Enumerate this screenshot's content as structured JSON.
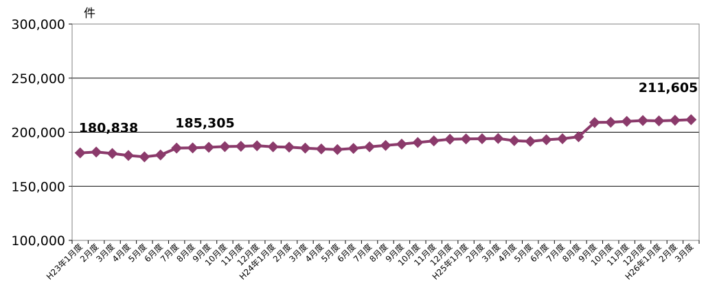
{
  "chart_data": {
    "type": "line",
    "unit_label": "件",
    "ylim": [
      100000,
      300000
    ],
    "yticks": [
      "300,000",
      "250,000",
      "200,000",
      "150,000",
      "100,000"
    ],
    "ytick_values": [
      300000,
      250000,
      200000,
      150000,
      100000
    ],
    "grid": true,
    "line_color": "#8B3A6B",
    "categories": [
      "H23年1月度",
      "2月度",
      "3月度",
      "4月度",
      "5月度",
      "6月度",
      "7月度",
      "8月度",
      "9月度",
      "10月度",
      "11月度",
      "12月度",
      "H24年1月度",
      "2月度",
      "3月度",
      "4月度",
      "5月度",
      "6月度",
      "7月度",
      "8月度",
      "9月度",
      "10月度",
      "11月度",
      "12月度",
      "H25年1月度",
      "2月度",
      "3月度",
      "4月度",
      "5月度",
      "6月度",
      "7月度",
      "8月度",
      "9月度",
      "10月度",
      "11月度",
      "12月度",
      "H26年1月度",
      "2月度",
      "3月度"
    ],
    "values": [
      180838,
      181700,
      180300,
      178500,
      177200,
      179000,
      185305,
      185500,
      186000,
      186700,
      187000,
      187500,
      186500,
      186200,
      185300,
      184500,
      184000,
      185000,
      186500,
      187800,
      189000,
      190500,
      192000,
      193500,
      193800,
      194000,
      194200,
      192200,
      191500,
      193000,
      194000,
      195800,
      209000,
      209200,
      210000,
      210800,
      210500,
      211000,
      211605
    ],
    "data_labels": [
      {
        "index": 0,
        "text": "180,838"
      },
      {
        "index": 6,
        "text": "185,305"
      },
      {
        "index": 38,
        "text": "211,605"
      }
    ]
  }
}
